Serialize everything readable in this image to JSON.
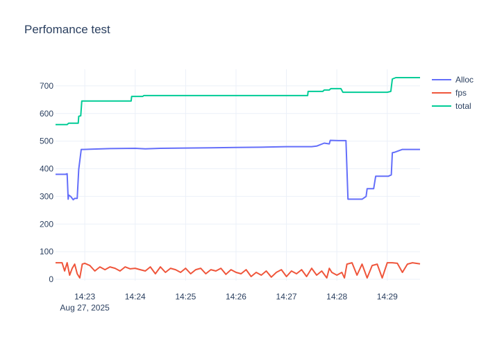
{
  "chart_data": {
    "type": "line",
    "title": "Perfomance test",
    "xlabel": "",
    "ylabel": "",
    "x_tick_labels": [
      "14:23",
      "14:24",
      "14:25",
      "14:26",
      "14:27",
      "14:28",
      "14:29"
    ],
    "x_date_label": "Aug 27, 2025",
    "x_tick_minutes": [
      23,
      24,
      25,
      26,
      27,
      28,
      29
    ],
    "xlim_minutes": [
      22.42,
      29.65
    ],
    "y_ticks": [
      0,
      100,
      200,
      300,
      400,
      500,
      600,
      700
    ],
    "ylim": [
      -5,
      760
    ],
    "grid": true,
    "legend_position": "top-right",
    "series": [
      {
        "name": "Alloc",
        "color": "#636efa",
        "x_minutes": [
          22.42,
          22.62,
          22.65,
          22.67,
          22.68,
          22.72,
          22.77,
          22.8,
          22.85,
          22.88,
          22.93,
          22.98,
          23.5,
          24.0,
          24.2,
          24.5,
          25.0,
          25.5,
          26.0,
          26.5,
          27.0,
          27.3,
          27.5,
          27.6,
          27.75,
          27.85,
          27.87,
          28.03,
          28.18,
          28.22,
          28.5,
          28.58,
          28.6,
          28.73,
          28.77,
          28.82,
          29.02,
          29.08,
          29.1,
          29.15,
          29.3,
          29.65
        ],
        "values": [
          380,
          380,
          382,
          290,
          305,
          300,
          288,
          293,
          293,
          398,
          470,
          470,
          473,
          474,
          472,
          474,
          475,
          476,
          477,
          478,
          480,
          480,
          480,
          482,
          493,
          490,
          503,
          502,
          502,
          290,
          290,
          300,
          328,
          328,
          373,
          373,
          373,
          378,
          458,
          460,
          470,
          470
        ]
      },
      {
        "name": "fps",
        "color": "#ef553b",
        "x_minutes": [
          22.42,
          22.55,
          22.6,
          22.65,
          22.7,
          22.75,
          22.8,
          22.85,
          22.9,
          22.95,
          23.0,
          23.1,
          23.2,
          23.3,
          23.4,
          23.5,
          23.6,
          23.7,
          23.8,
          23.9,
          24.0,
          24.1,
          24.2,
          24.3,
          24.4,
          24.5,
          24.6,
          24.7,
          24.8,
          24.9,
          25.0,
          25.1,
          25.2,
          25.3,
          25.4,
          25.5,
          25.6,
          25.7,
          25.8,
          25.9,
          26.0,
          26.1,
          26.2,
          26.3,
          26.4,
          26.5,
          26.6,
          26.7,
          26.8,
          26.9,
          27.0,
          27.1,
          27.2,
          27.3,
          27.4,
          27.5,
          27.6,
          27.7,
          27.8,
          27.85,
          27.9,
          28.0,
          28.1,
          28.15,
          28.2,
          28.3,
          28.4,
          28.5,
          28.6,
          28.7,
          28.8,
          28.9,
          29.0,
          29.1,
          29.2,
          29.3,
          29.4,
          29.5,
          29.65
        ],
        "values": [
          60,
          60,
          30,
          60,
          15,
          40,
          55,
          20,
          5,
          55,
          58,
          50,
          30,
          45,
          35,
          45,
          40,
          30,
          45,
          38,
          40,
          35,
          30,
          45,
          20,
          45,
          25,
          40,
          35,
          25,
          40,
          20,
          35,
          40,
          20,
          35,
          30,
          40,
          18,
          35,
          25,
          20,
          35,
          10,
          25,
          15,
          30,
          8,
          25,
          35,
          10,
          30,
          20,
          35,
          10,
          40,
          15,
          30,
          5,
          40,
          25,
          15,
          25,
          5,
          55,
          60,
          15,
          55,
          5,
          50,
          55,
          5,
          60,
          60,
          58,
          25,
          55,
          60,
          56
        ]
      },
      {
        "name": "total",
        "color": "#00cc96",
        "x_minutes": [
          22.42,
          22.65,
          22.68,
          22.87,
          22.88,
          22.92,
          22.94,
          22.98,
          23.5,
          23.92,
          23.93,
          24.15,
          24.17,
          25.0,
          26.0,
          27.0,
          27.42,
          27.43,
          27.72,
          27.75,
          27.85,
          27.88,
          28.08,
          28.12,
          29.0,
          29.07,
          29.1,
          29.17,
          29.65
        ],
        "values": [
          560,
          560,
          565,
          565,
          590,
          592,
          645,
          645,
          645,
          645,
          662,
          662,
          665,
          665,
          665,
          665,
          665,
          680,
          680,
          685,
          685,
          690,
          690,
          677,
          677,
          680,
          725,
          730,
          730
        ]
      }
    ]
  }
}
